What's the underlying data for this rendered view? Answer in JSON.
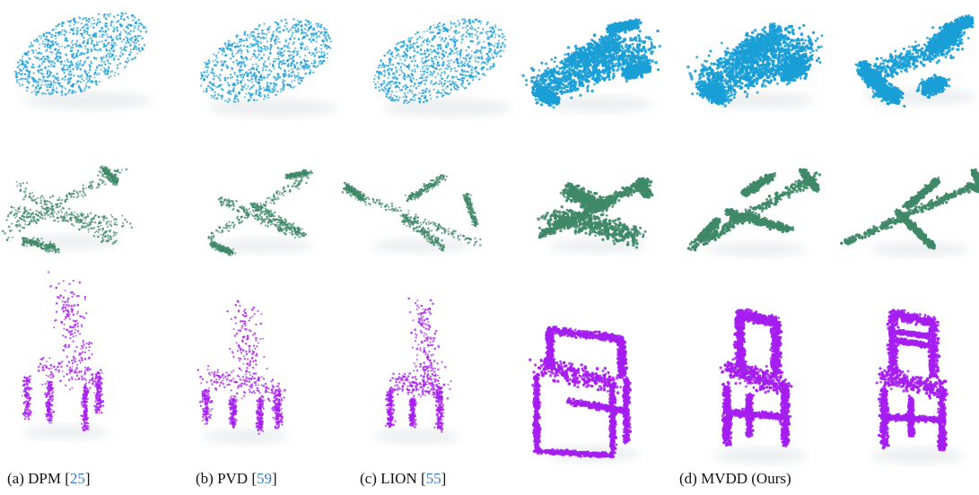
{
  "rows": [
    {
      "name": "car",
      "color": "#1a9ed6"
    },
    {
      "name": "airplane",
      "color": "#3f8868"
    },
    {
      "name": "chair",
      "color": "#a51ef0"
    }
  ],
  "captions": [
    {
      "label": "(a) DPM [",
      "ref": "25",
      "close": "]"
    },
    {
      "label": "(b) PVD [",
      "ref": "59",
      "close": "]"
    },
    {
      "label": "(c) LION [",
      "ref": "55",
      "close": "]"
    },
    {
      "label": "(d) MVDD (Ours)",
      "ref": "",
      "close": ""
    }
  ]
}
